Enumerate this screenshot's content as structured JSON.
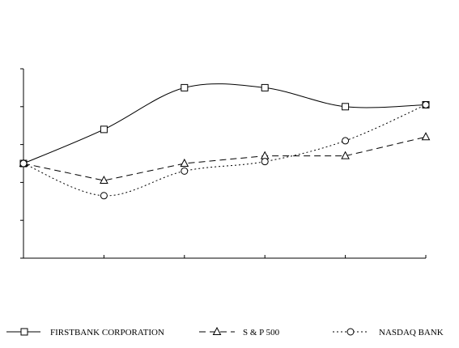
{
  "chart_data": {
    "type": "line",
    "title": "",
    "xlabel": "",
    "ylabel": "",
    "x": [
      0,
      1,
      2,
      3,
      4,
      5
    ],
    "ylim": [
      50,
      150
    ],
    "grid": false,
    "legend_position": "bottom",
    "series": [
      {
        "name": "FIRSTBANK CORPORATION",
        "marker": "square",
        "dash": "solid",
        "smooth": true,
        "values": [
          100,
          118,
          140,
          140,
          130,
          131
        ]
      },
      {
        "name": "S & P 500",
        "marker": "triangle",
        "dash": "dashed",
        "smooth": false,
        "values": [
          100,
          91,
          100,
          104,
          104,
          114
        ]
      },
      {
        "name": "NASDAQ BANK",
        "marker": "circle",
        "dash": "dotted",
        "smooth": true,
        "values": [
          100,
          83,
          96,
          101,
          112,
          131
        ]
      }
    ]
  }
}
